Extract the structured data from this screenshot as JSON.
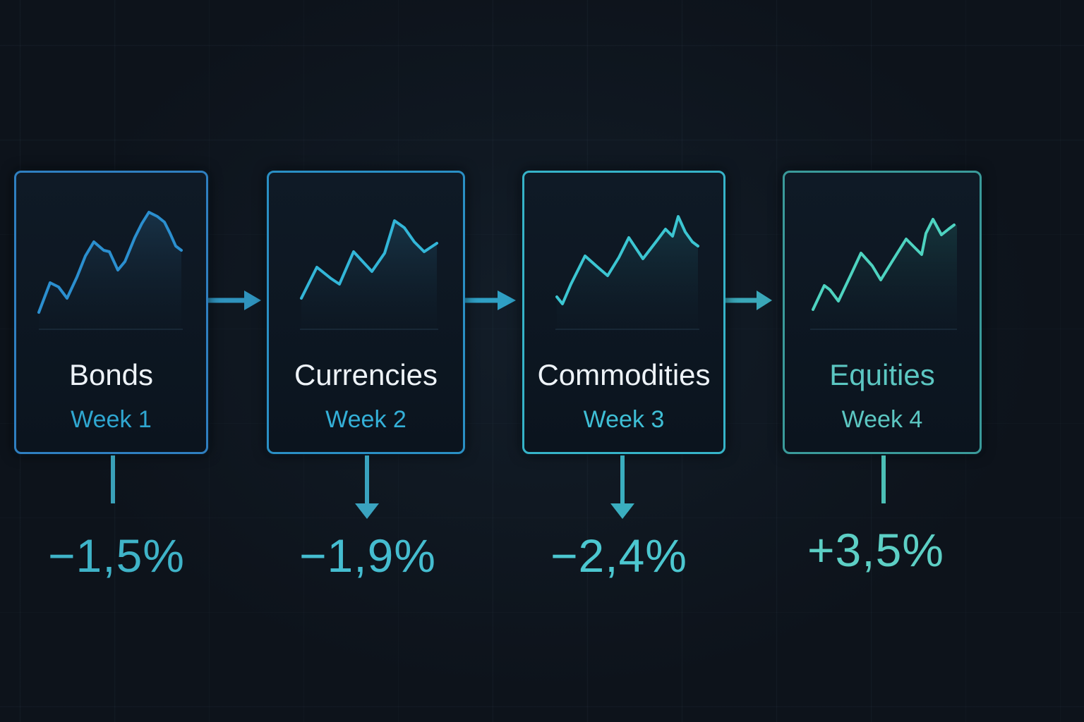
{
  "steps": [
    {
      "title": "Bonds",
      "week": "Week 1",
      "change": "−1,5%",
      "border_color": "#2f7fc0",
      "line_color": "#2b8fcf",
      "title_color": "#eef3f8",
      "week_color": "#2ea0d6",
      "change_color": "#3fb3c8",
      "connector": "line"
    },
    {
      "title": "Currencies",
      "week": "Week 2",
      "change": "−1,9%",
      "border_color": "#2a8fc4",
      "line_color": "#33b6d8",
      "title_color": "#eef3f8",
      "week_color": "#34b0d8",
      "change_color": "#45bdd0",
      "connector": "arrow"
    },
    {
      "title": "Commodities",
      "week": "Week 3",
      "change": "−2,4%",
      "border_color": "#36b3c8",
      "line_color": "#3cc6d2",
      "title_color": "#eef3f8",
      "week_color": "#3fbfd6",
      "change_color": "#4cc7d0",
      "connector": "arrow"
    },
    {
      "title": "Equities",
      "week": "Week 4",
      "change": "+3,5%",
      "border_color": "#3a9a9a",
      "line_color": "#4ed3c0",
      "title_color": "#5cc7c2",
      "week_color": "#5cc7c2",
      "change_color": "#5dcfc5",
      "connector": "line"
    }
  ],
  "flow_arrow_color": "#2f93bd",
  "background_color": "#0d131b"
}
